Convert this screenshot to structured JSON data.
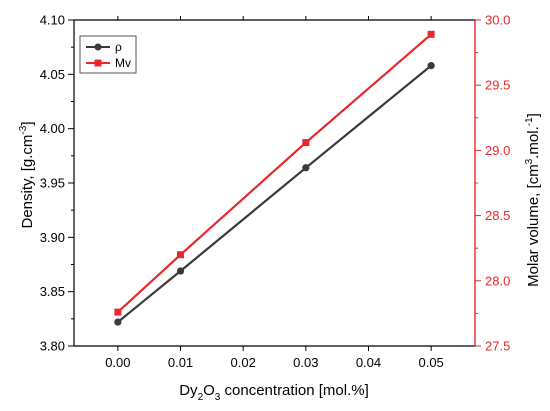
{
  "chart_data": {
    "type": "line",
    "x": [
      0.0,
      0.01,
      0.03,
      0.05
    ],
    "xlim": [
      -0.007,
      0.057
    ],
    "x_ticks": [
      "0.00",
      "0.01",
      "0.02",
      "0.03",
      "0.04",
      "0.05"
    ],
    "xlabel": {
      "pre": "Dy",
      "s1": "2",
      "mid": "O",
      "s2": "3",
      "post": " concentration [mol.%]"
    },
    "ylabel_left": {
      "pre": "Density, [g.cm",
      "sup": "-3",
      "post": "]"
    },
    "ylabel_right": {
      "pre": "Molar volume, [cm",
      "sup1": "3",
      "mid": ".mol.",
      "sup2": "-1",
      "post": "]"
    },
    "ylim_left": [
      3.8,
      4.1
    ],
    "ylim_right": [
      27.5,
      30.0
    ],
    "left_ticks": [
      "3.80",
      "3.85",
      "3.90",
      "3.95",
      "4.00",
      "4.05",
      "4.10"
    ],
    "right_ticks": [
      "27.5",
      "28.0",
      "28.5",
      "29.0",
      "29.5",
      "30.0"
    ],
    "grid": false,
    "legend_position": "top-left",
    "series": [
      {
        "name": "ρ",
        "axis": "left",
        "values": [
          3.822,
          3.869,
          3.964,
          4.058
        ],
        "color": "#3a3a3a",
        "marker": "circle"
      },
      {
        "name": "Mv",
        "axis": "right",
        "values": [
          27.76,
          28.2,
          29.06,
          29.89
        ],
        "color": "#e8282b",
        "marker": "square"
      }
    ],
    "colors": {
      "axis_left": "#000000",
      "axis_right": "#e8282b"
    }
  }
}
